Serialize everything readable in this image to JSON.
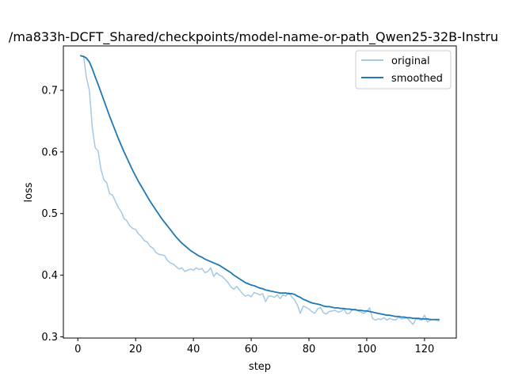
{
  "chart_data": {
    "type": "line",
    "title": "/ma833h-DCFT_Shared/checkpoints/model-name-or-path_Qwen25-32B-Instru",
    "xlabel": "step",
    "ylabel": "loss",
    "xlim": [
      -5,
      131
    ],
    "ylim": [
      0.298,
      0.772
    ],
    "xticks": [
      0,
      20,
      40,
      60,
      80,
      100,
      120
    ],
    "yticks": [
      0.3,
      0.4,
      0.5,
      0.6,
      0.7
    ],
    "grid": false,
    "legend_position": "top-right",
    "series": [
      {
        "name": "original",
        "color": "#a6c8e3",
        "x": [
          1,
          2,
          3,
          4,
          5,
          6,
          7,
          8,
          9,
          10,
          11,
          12,
          13,
          14,
          15,
          16,
          17,
          18,
          19,
          20,
          21,
          22,
          23,
          24,
          25,
          26,
          27,
          28,
          29,
          30,
          31,
          32,
          33,
          34,
          35,
          36,
          37,
          38,
          39,
          40,
          41,
          42,
          43,
          44,
          45,
          46,
          47,
          48,
          49,
          50,
          51,
          52,
          53,
          54,
          55,
          56,
          57,
          58,
          59,
          60,
          61,
          62,
          63,
          64,
          65,
          66,
          67,
          68,
          69,
          70,
          71,
          72,
          73,
          74,
          75,
          76,
          77,
          78,
          79,
          80,
          81,
          82,
          83,
          84,
          85,
          86,
          87,
          88,
          89,
          90,
          91,
          92,
          93,
          94,
          95,
          96,
          97,
          98,
          99,
          100,
          101,
          102,
          103,
          104,
          105,
          106,
          107,
          108,
          109,
          110,
          111,
          112,
          113,
          114,
          115,
          116,
          117,
          118,
          119,
          120,
          121,
          122,
          123,
          124,
          125
        ],
        "y": [
          0.756,
          0.755,
          0.72,
          0.7,
          0.64,
          0.607,
          0.602,
          0.572,
          0.555,
          0.55,
          0.532,
          0.53,
          0.52,
          0.51,
          0.503,
          0.492,
          0.488,
          0.48,
          0.476,
          0.474,
          0.467,
          0.463,
          0.456,
          0.454,
          0.447,
          0.444,
          0.437,
          0.434,
          0.433,
          0.432,
          0.424,
          0.42,
          0.418,
          0.414,
          0.41,
          0.412,
          0.406,
          0.408,
          0.41,
          0.408,
          0.412,
          0.409,
          0.411,
          0.404,
          0.406,
          0.412,
          0.398,
          0.404,
          0.4,
          0.398,
          0.393,
          0.388,
          0.381,
          0.377,
          0.382,
          0.376,
          0.37,
          0.366,
          0.368,
          0.365,
          0.372,
          0.37,
          0.368,
          0.37,
          0.357,
          0.366,
          0.366,
          0.364,
          0.368,
          0.362,
          0.368,
          0.366,
          0.372,
          0.365,
          0.36,
          0.352,
          0.338,
          0.35,
          0.348,
          0.345,
          0.341,
          0.338,
          0.345,
          0.348,
          0.339,
          0.337,
          0.341,
          0.342,
          0.343,
          0.34,
          0.341,
          0.345,
          0.338,
          0.338,
          0.344,
          0.345,
          0.342,
          0.34,
          0.338,
          0.341,
          0.347,
          0.33,
          0.327,
          0.329,
          0.328,
          0.331,
          0.327,
          0.33,
          0.328,
          0.327,
          0.332,
          0.329,
          0.33,
          0.331,
          0.325,
          0.32,
          0.329,
          0.328,
          0.327,
          0.335,
          0.324,
          0.327,
          0.328,
          0.327,
          0.326
        ]
      },
      {
        "name": "smoothed",
        "color": "#1f77b4",
        "x": [
          1,
          2,
          3,
          4,
          5,
          6,
          7,
          8,
          9,
          10,
          11,
          12,
          13,
          14,
          15,
          16,
          17,
          18,
          19,
          20,
          21,
          22,
          23,
          24,
          25,
          26,
          27,
          28,
          29,
          30,
          31,
          32,
          33,
          34,
          35,
          36,
          37,
          38,
          39,
          40,
          41,
          42,
          43,
          44,
          45,
          46,
          47,
          48,
          49,
          50,
          51,
          52,
          53,
          54,
          55,
          56,
          57,
          58,
          59,
          60,
          61,
          62,
          63,
          64,
          65,
          66,
          67,
          68,
          69,
          70,
          71,
          72,
          73,
          74,
          75,
          76,
          77,
          78,
          79,
          80,
          81,
          82,
          83,
          84,
          85,
          86,
          87,
          88,
          89,
          90,
          91,
          92,
          93,
          94,
          95,
          96,
          97,
          98,
          99,
          100,
          101,
          102,
          103,
          104,
          105,
          106,
          107,
          108,
          109,
          110,
          111,
          112,
          113,
          114,
          115,
          116,
          117,
          118,
          119,
          120,
          121,
          122,
          123,
          124,
          125
        ],
        "y": [
          0.756,
          0.755,
          0.752,
          0.746,
          0.735,
          0.722,
          0.71,
          0.697,
          0.684,
          0.671,
          0.658,
          0.646,
          0.634,
          0.622,
          0.611,
          0.6,
          0.59,
          0.58,
          0.57,
          0.561,
          0.552,
          0.544,
          0.536,
          0.528,
          0.52,
          0.513,
          0.506,
          0.499,
          0.492,
          0.486,
          0.48,
          0.474,
          0.468,
          0.462,
          0.457,
          0.452,
          0.448,
          0.444,
          0.44,
          0.437,
          0.434,
          0.431,
          0.429,
          0.426,
          0.424,
          0.422,
          0.42,
          0.418,
          0.416,
          0.413,
          0.41,
          0.407,
          0.404,
          0.4,
          0.397,
          0.394,
          0.391,
          0.388,
          0.386,
          0.384,
          0.383,
          0.381,
          0.379,
          0.378,
          0.376,
          0.375,
          0.374,
          0.373,
          0.372,
          0.371,
          0.371,
          0.371,
          0.37,
          0.37,
          0.369,
          0.366,
          0.364,
          0.361,
          0.359,
          0.357,
          0.355,
          0.354,
          0.353,
          0.352,
          0.35,
          0.349,
          0.349,
          0.348,
          0.347,
          0.347,
          0.346,
          0.346,
          0.345,
          0.345,
          0.344,
          0.344,
          0.343,
          0.343,
          0.342,
          0.342,
          0.341,
          0.34,
          0.339,
          0.338,
          0.337,
          0.336,
          0.335,
          0.335,
          0.334,
          0.333,
          0.333,
          0.332,
          0.332,
          0.331,
          0.331,
          0.33,
          0.33,
          0.33,
          0.329,
          0.329,
          0.329,
          0.328,
          0.328,
          0.328,
          0.328
        ]
      }
    ]
  }
}
